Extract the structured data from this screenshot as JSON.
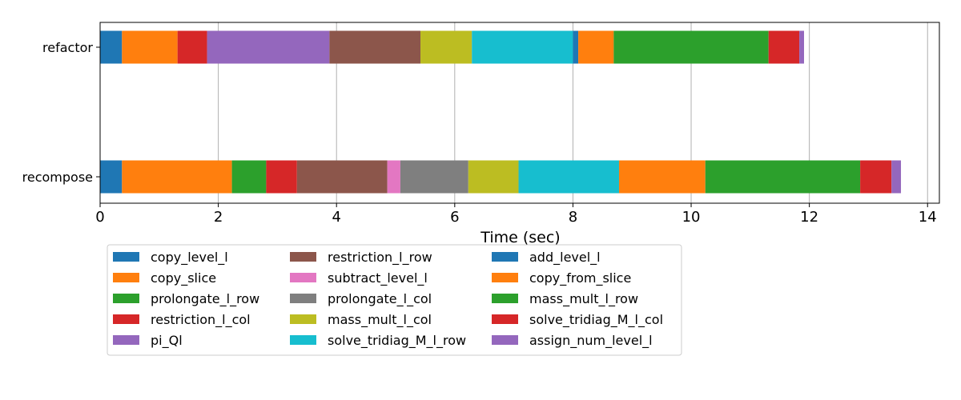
{
  "chart_data": {
    "type": "bar",
    "orientation": "horizontal-stacked",
    "categories": [
      "refactor",
      "recompose"
    ],
    "xlabel": "Time (sec)",
    "ylabel": "",
    "xlim": [
      0,
      14.2
    ],
    "xticks": [
      0,
      2,
      4,
      6,
      8,
      10,
      12,
      14
    ],
    "grid": "vertical",
    "legend_position": "bottom, three columns",
    "legend": [
      {
        "label": "copy_level_l",
        "color": "#1f77b4"
      },
      {
        "label": "copy_slice",
        "color": "#ff7f0e"
      },
      {
        "label": "prolongate_l_row",
        "color": "#2ca02c"
      },
      {
        "label": "restriction_l_col",
        "color": "#d62728"
      },
      {
        "label": "pi_Ql",
        "color": "#9467bd"
      },
      {
        "label": "restriction_l_row",
        "color": "#8c564b"
      },
      {
        "label": "subtract_level_l",
        "color": "#e377c2"
      },
      {
        "label": "prolongate_l_col",
        "color": "#7f7f7f"
      },
      {
        "label": "mass_mult_l_col",
        "color": "#bcbd22"
      },
      {
        "label": "solve_tridiag_M_l_row",
        "color": "#17becf"
      },
      {
        "label": "add_level_l",
        "color": "#1f77b4"
      },
      {
        "label": "copy_from_slice",
        "color": "#ff7f0e"
      },
      {
        "label": "mass_mult_l_row",
        "color": "#2ca02c"
      },
      {
        "label": "solve_tridiag_M_l_col",
        "color": "#d62728"
      },
      {
        "label": "assign_num_level_l",
        "color": "#9467bd"
      }
    ],
    "bars": [
      {
        "category": "refactor",
        "segments": [
          {
            "series": "copy_level_l",
            "start": 0,
            "end": 0.37,
            "color": "#1f77b4"
          },
          {
            "series": "copy_slice",
            "start": 0.37,
            "end": 1.31,
            "color": "#ff7f0e"
          },
          {
            "series": "restriction_l_col",
            "start": 1.31,
            "end": 1.81,
            "color": "#d62728"
          },
          {
            "series": "pi_Ql",
            "start": 1.81,
            "end": 3.88,
            "color": "#9467bd"
          },
          {
            "series": "restriction_l_row",
            "start": 3.88,
            "end": 5.42,
            "color": "#8c564b"
          },
          {
            "series": "mass_mult_l_col",
            "start": 5.42,
            "end": 6.29,
            "color": "#bcbd22"
          },
          {
            "series": "solve_tridiag_M_l_row",
            "start": 6.29,
            "end": 8.0,
            "color": "#17becf"
          },
          {
            "series": "add_level_l",
            "start": 8.0,
            "end": 8.09,
            "color": "#1f77b4"
          },
          {
            "series": "copy_from_slice",
            "start": 8.09,
            "end": 8.69,
            "color": "#ff7f0e"
          },
          {
            "series": "mass_mult_l_row",
            "start": 8.69,
            "end": 11.31,
            "color": "#2ca02c"
          },
          {
            "series": "solve_tridiag_M_l_col",
            "start": 11.31,
            "end": 11.83,
            "color": "#d62728"
          },
          {
            "series": "assign_num_level_l",
            "start": 11.83,
            "end": 11.91,
            "color": "#9467bd"
          }
        ]
      },
      {
        "category": "recompose",
        "segments": [
          {
            "series": "copy_level_l",
            "start": 0,
            "end": 0.37,
            "color": "#1f77b4"
          },
          {
            "series": "copy_slice",
            "start": 0.37,
            "end": 2.23,
            "color": "#ff7f0e"
          },
          {
            "series": "prolongate_l_row",
            "start": 2.23,
            "end": 2.81,
            "color": "#2ca02c"
          },
          {
            "series": "restriction_l_col",
            "start": 2.81,
            "end": 3.33,
            "color": "#d62728"
          },
          {
            "series": "restriction_l_row",
            "start": 3.33,
            "end": 4.86,
            "color": "#8c564b"
          },
          {
            "series": "subtract_level_l",
            "start": 4.86,
            "end": 5.08,
            "color": "#e377c2"
          },
          {
            "series": "prolongate_l_col",
            "start": 5.08,
            "end": 6.23,
            "color": "#7f7f7f"
          },
          {
            "series": "mass_mult_l_col",
            "start": 6.23,
            "end": 7.08,
            "color": "#bcbd22"
          },
          {
            "series": "solve_tridiag_M_l_row",
            "start": 7.08,
            "end": 8.78,
            "color": "#17becf"
          },
          {
            "series": "copy_from_slice",
            "start": 8.78,
            "end": 10.24,
            "color": "#ff7f0e"
          },
          {
            "series": "mass_mult_l_row",
            "start": 10.24,
            "end": 12.86,
            "color": "#2ca02c"
          },
          {
            "series": "solve_tridiag_M_l_col",
            "start": 12.86,
            "end": 13.39,
            "color": "#d62728"
          },
          {
            "series": "assign_num_level_l",
            "start": 13.39,
            "end": 13.55,
            "color": "#9467bd"
          }
        ]
      }
    ]
  }
}
